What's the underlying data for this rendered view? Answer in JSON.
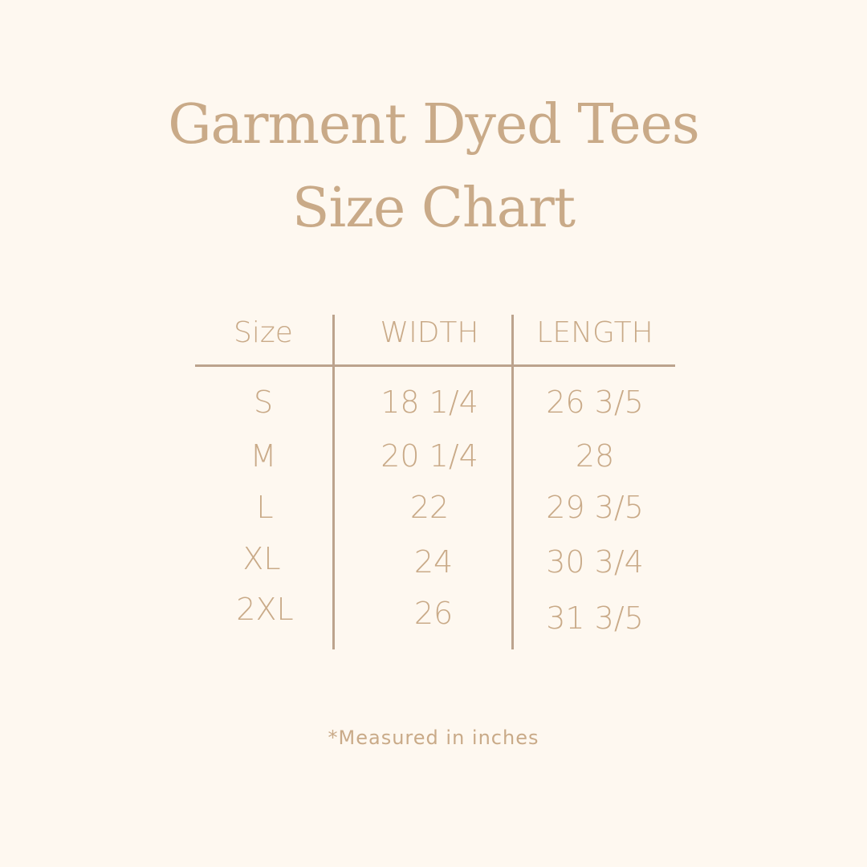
{
  "title": {
    "line1": "Garment Dyed Tees",
    "line2": "Size Chart"
  },
  "table": {
    "headers": [
      "Size",
      "WIDTH",
      "LENGTH"
    ],
    "rows": [
      [
        "S",
        "18 1/4",
        "26 3/5"
      ],
      [
        "M",
        "20 1/4",
        "28"
      ],
      [
        "L",
        "22",
        "29 3/5"
      ],
      [
        "XL",
        "24",
        "30 3/4"
      ],
      [
        "2XL",
        "26",
        "31 3/5"
      ]
    ]
  },
  "note": "*Measured in inches",
  "colors": {
    "background": "#FEF8F0",
    "text": "#C9AA88",
    "rule": "#BCA38D"
  }
}
